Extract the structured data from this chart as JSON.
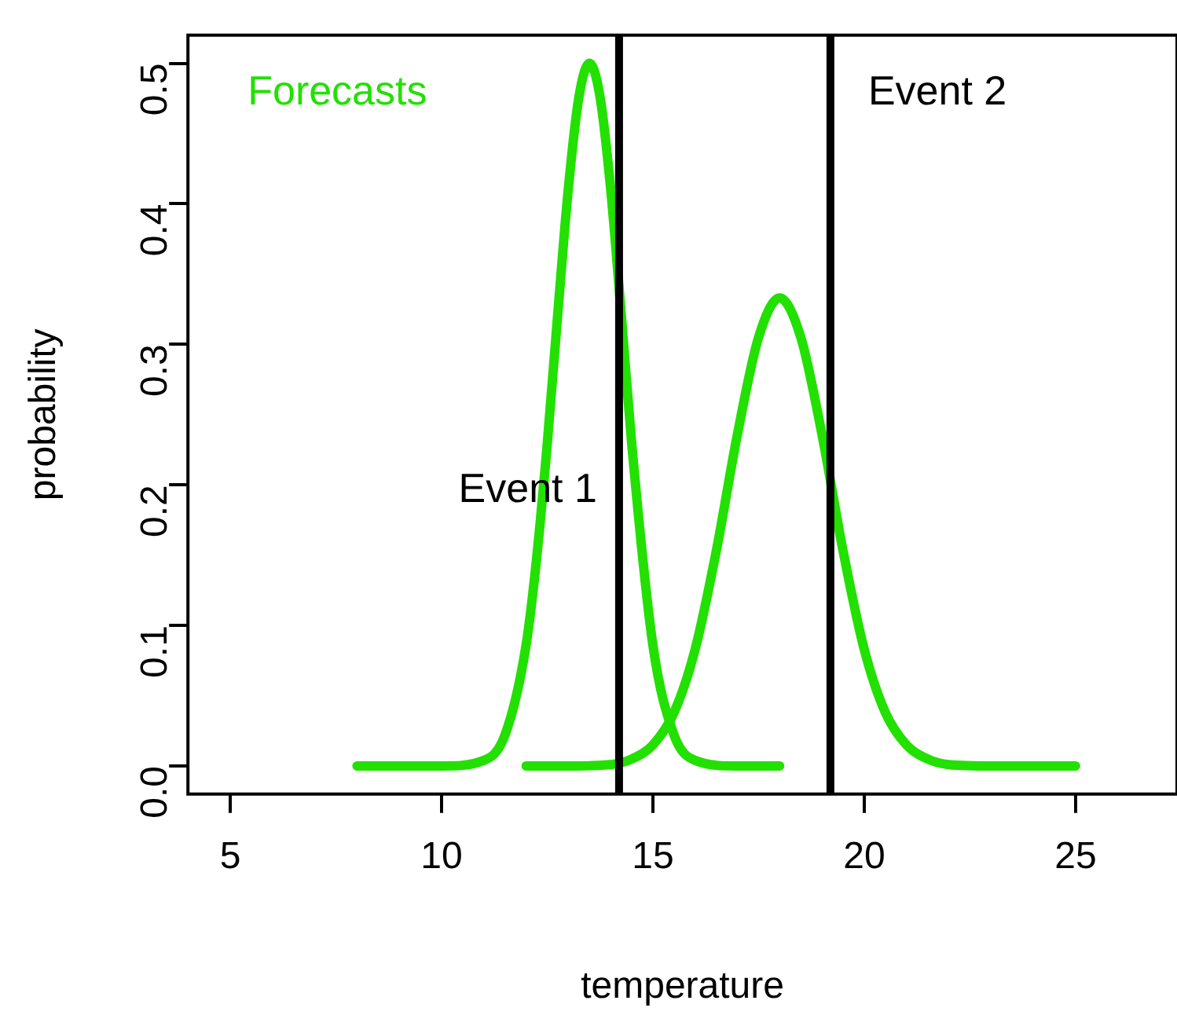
{
  "chart_data": {
    "type": "line",
    "xlabel": "temperature",
    "ylabel": "probability",
    "xlim": [
      4,
      27.4
    ],
    "xticks": [
      5,
      10,
      15,
      20,
      25
    ],
    "ylim": [
      -0.02,
      0.52
    ],
    "yticks": [
      {
        "value": 0,
        "label": "0.0"
      },
      {
        "value": 0.1,
        "label": "0.1"
      },
      {
        "value": 0.2,
        "label": "0.2"
      },
      {
        "value": 0.3,
        "label": "0.3"
      },
      {
        "value": 0.4,
        "label": "0.4"
      },
      {
        "value": 0.5,
        "label": "0.5"
      }
    ],
    "series": [
      {
        "color": "#22e000",
        "x": [
          8,
          10,
          11,
          11.5,
          12,
          12.25,
          12.5,
          12.75,
          13,
          13.25,
          13.5,
          13.75,
          14,
          14.25,
          14.5,
          15,
          15.5,
          16,
          17,
          18
        ],
        "values": [
          0,
          0,
          0.004,
          0.022,
          0.086,
          0.148,
          0.229,
          0.322,
          0.411,
          0.476,
          0.5,
          0.476,
          0.411,
          0.322,
          0.229,
          0.086,
          0.022,
          0.004,
          0,
          0
        ]
      },
      {
        "color": "#22e000",
        "x": [
          12,
          13,
          14,
          14.5,
          15,
          15.5,
          16,
          16.5,
          17,
          17.5,
          18,
          18.5,
          19,
          19.5,
          20,
          20.5,
          21,
          21.5,
          22,
          23,
          25
        ],
        "values": [
          0,
          0,
          0.001,
          0.005,
          0.015,
          0.038,
          0.083,
          0.153,
          0.236,
          0.305,
          0.333,
          0.305,
          0.236,
          0.153,
          0.083,
          0.038,
          0.015,
          0.005,
          0.001,
          0,
          0
        ]
      }
    ],
    "ref_lines": [
      {
        "axis": "x",
        "value": 14.2,
        "color": "#000000",
        "label": "Event 1"
      },
      {
        "axis": "x",
        "value": 19.2,
        "color": "#000000",
        "label": "Event 2"
      }
    ],
    "annotations": [
      "Forecasts"
    ]
  }
}
